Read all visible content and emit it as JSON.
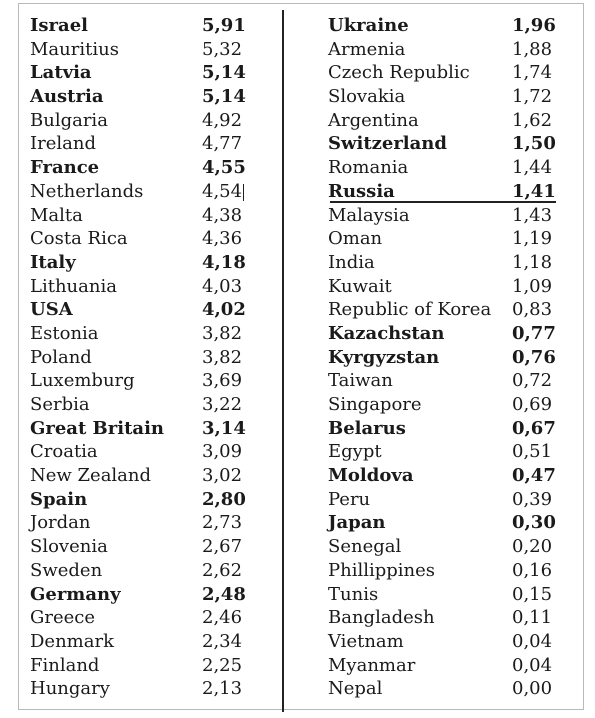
{
  "left": [
    {
      "name": "Israel",
      "value": "5,91",
      "bold": true
    },
    {
      "name": "Mauritius",
      "value": "5,32",
      "bold": false
    },
    {
      "name": "Latvia",
      "value": "5,14",
      "bold": true
    },
    {
      "name": "Austria",
      "value": "5,14",
      "bold": true
    },
    {
      "name": "Bulgaria",
      "value": "4,92",
      "bold": false
    },
    {
      "name": "Ireland",
      "value": "4,77",
      "bold": false
    },
    {
      "name": "France",
      "value": "4,55",
      "bold": true
    },
    {
      "name": "Netherlands",
      "value": "4,54",
      "bold": false
    },
    {
      "name": "Malta",
      "value": "4,38",
      "bold": false
    },
    {
      "name": "Costa Rica",
      "value": "4,36",
      "bold": false
    },
    {
      "name": "Italy",
      "value": "4,18",
      "bold": true
    },
    {
      "name": "Lithuania",
      "value": "4,03",
      "bold": false
    },
    {
      "name": "USA",
      "value": "4,02",
      "bold": true
    },
    {
      "name": "Estonia",
      "value": "3,82",
      "bold": false
    },
    {
      "name": "Poland",
      "value": "3,82",
      "bold": false
    },
    {
      "name": "Luxemburg",
      "value": "3,69",
      "bold": false
    },
    {
      "name": "Serbia",
      "value": "3,22",
      "bold": false
    },
    {
      "name": "Great Britain",
      "value": "3,14",
      "bold": true
    },
    {
      "name": "Croatia",
      "value": "3,09",
      "bold": false
    },
    {
      "name": "New Zealand",
      "value": "3,02",
      "bold": false
    },
    {
      "name": "Spain",
      "value": "2,80",
      "bold": true
    },
    {
      "name": "Jordan",
      "value": "2,73",
      "bold": false
    },
    {
      "name": "Slovenia",
      "value": "2,67",
      "bold": false
    },
    {
      "name": "Sweden",
      "value": "2,62",
      "bold": false
    },
    {
      "name": "Germany",
      "value": "2,48",
      "bold": true
    },
    {
      "name": "Greece",
      "value": "2,46",
      "bold": false
    },
    {
      "name": "Denmark",
      "value": "2,34",
      "bold": false
    },
    {
      "name": "Finland",
      "value": "2,25",
      "bold": false
    },
    {
      "name": "Hungary",
      "value": "2,13",
      "bold": false
    }
  ],
  "right": [
    {
      "name": "Ukraine",
      "value": "1,96",
      "bold": true
    },
    {
      "name": "Armenia",
      "value": "1,88",
      "bold": false
    },
    {
      "name": "Czech Republic",
      "value": "1,74",
      "bold": false
    },
    {
      "name": "Slovakia",
      "value": "1,72",
      "bold": false
    },
    {
      "name": "Argentina",
      "value": "1,62",
      "bold": false
    },
    {
      "name": "Switzerland",
      "value": "1,50",
      "bold": true
    },
    {
      "name": "Romania",
      "value": "1,44",
      "bold": false
    },
    {
      "name": "Russia",
      "value": "1,41",
      "bold": true,
      "underline": true
    },
    {
      "name": "Malaysia",
      "value": "1,43",
      "bold": false
    },
    {
      "name": "Oman",
      "value": "1,19",
      "bold": false
    },
    {
      "name": "India",
      "value": "1,18",
      "bold": false
    },
    {
      "name": "Kuwait",
      "value": "1,09",
      "bold": false
    },
    {
      "name": "Republic of Korea",
      "value": "0,83",
      "bold": false
    },
    {
      "name": "Kazachstan",
      "value": "0,77",
      "bold": true
    },
    {
      "name": "Kyrgyzstan",
      "value": "0,76",
      "bold": true
    },
    {
      "name": "Taiwan",
      "value": "0,72",
      "bold": false
    },
    {
      "name": "Singapore",
      "value": "0,69",
      "bold": false
    },
    {
      "name": "Belarus",
      "value": "0,67",
      "bold": true
    },
    {
      "name": "Egypt",
      "value": "0,51",
      "bold": false
    },
    {
      "name": "Moldova",
      "value": "0,47",
      "bold": true
    },
    {
      "name": "Peru",
      "value": "0,39",
      "bold": false
    },
    {
      "name": "Japan",
      "value": "0,30",
      "bold": true
    },
    {
      "name": "Senegal",
      "value": "0,20",
      "bold": false
    },
    {
      "name": "Phillippines",
      "value": "0,16",
      "bold": false
    },
    {
      "name": "Tunis",
      "value": "0,15",
      "bold": false
    },
    {
      "name": "Bangladesh",
      "value": "0,11",
      "bold": false
    },
    {
      "name": "Vietnam",
      "value": "0,04",
      "bold": false
    },
    {
      "name": "Myanmar",
      "value": "0,04",
      "bold": false
    },
    {
      "name": "Nepal",
      "value": "0,00",
      "bold": false
    }
  ]
}
